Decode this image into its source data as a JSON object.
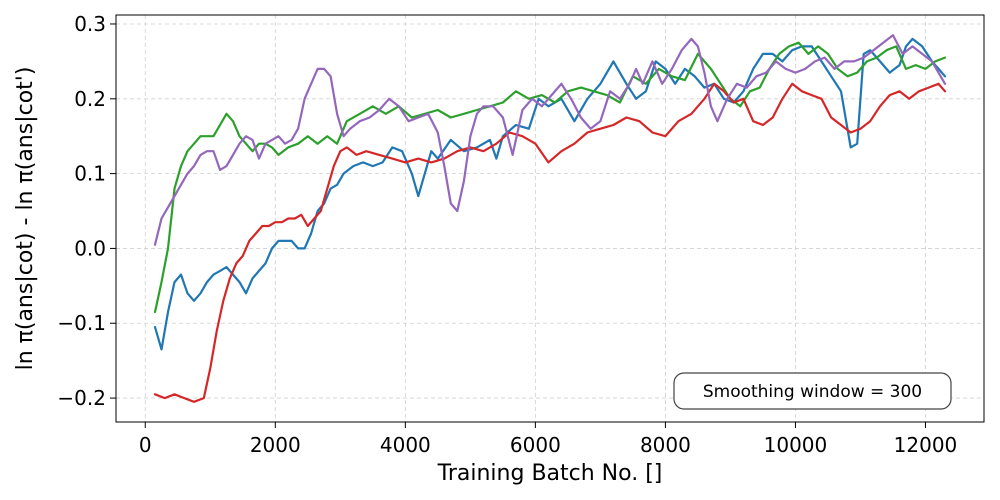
{
  "chart_data": {
    "type": "line",
    "title": "",
    "xlabel": "Training Batch No. []",
    "ylabel": "ln π(ans|cot) - ln π(ans|cot')",
    "xlim": [
      -450,
      12900
    ],
    "ylim": [
      -0.232,
      0.312
    ],
    "xticks": [
      0,
      2000,
      4000,
      6000,
      8000,
      10000,
      12000
    ],
    "xtick_labels": [
      "0",
      "2000",
      "4000",
      "6000",
      "8000",
      "10000",
      "12000"
    ],
    "yticks": [
      -0.2,
      -0.1,
      0.0,
      0.1,
      0.2,
      0.3
    ],
    "ytick_labels": [
      "−0.2",
      "−0.1",
      "0.0",
      "0.1",
      "0.2",
      "0.3"
    ],
    "grid": true,
    "annotation": "Smoothing window = 300",
    "annotation_position": "bottom-right",
    "series": [
      {
        "color": "#1f77b4",
        "x": [
          150,
          250,
          350,
          450,
          550,
          650,
          750,
          850,
          950,
          1050,
          1150,
          1250,
          1350,
          1450,
          1550,
          1650,
          1750,
          1850,
          1950,
          2050,
          2150,
          2250,
          2350,
          2450,
          2550,
          2650,
          2750,
          2850,
          2950,
          3050,
          3200,
          3350,
          3500,
          3650,
          3800,
          3950,
          4100,
          4200,
          4300,
          4400,
          4500,
          4700,
          4900,
          5100,
          5300,
          5400,
          5500,
          5700,
          5900,
          6050,
          6200,
          6400,
          6600,
          6800,
          7000,
          7200,
          7400,
          7550,
          7700,
          7850,
          8000,
          8150,
          8300,
          8450,
          8600,
          8750,
          8900,
          9050,
          9200,
          9350,
          9500,
          9650,
          9800,
          9950,
          10100,
          10250,
          10400,
          10550,
          10700,
          10850,
          10950,
          11050,
          11150,
          11300,
          11450,
          11600,
          11700,
          11800,
          11950,
          12100,
          12300
        ],
        "y": [
          -0.105,
          -0.135,
          -0.085,
          -0.045,
          -0.035,
          -0.06,
          -0.07,
          -0.06,
          -0.045,
          -0.035,
          -0.03,
          -0.025,
          -0.035,
          -0.045,
          -0.06,
          -0.04,
          -0.03,
          -0.02,
          0.0,
          0.01,
          0.01,
          0.01,
          0.0,
          0.0,
          0.02,
          0.05,
          0.06,
          0.08,
          0.085,
          0.1,
          0.11,
          0.115,
          0.11,
          0.115,
          0.135,
          0.13,
          0.1,
          0.07,
          0.1,
          0.13,
          0.12,
          0.145,
          0.13,
          0.135,
          0.145,
          0.12,
          0.15,
          0.165,
          0.16,
          0.2,
          0.19,
          0.2,
          0.17,
          0.2,
          0.22,
          0.25,
          0.22,
          0.2,
          0.21,
          0.25,
          0.24,
          0.22,
          0.24,
          0.23,
          0.215,
          0.22,
          0.2,
          0.195,
          0.21,
          0.24,
          0.26,
          0.26,
          0.25,
          0.265,
          0.27,
          0.27,
          0.25,
          0.23,
          0.21,
          0.135,
          0.14,
          0.26,
          0.265,
          0.25,
          0.235,
          0.245,
          0.27,
          0.28,
          0.27,
          0.25,
          0.23
        ]
      },
      {
        "color": "#2ca02c",
        "x": [
          150,
          250,
          350,
          450,
          550,
          650,
          750,
          850,
          950,
          1050,
          1150,
          1250,
          1350,
          1450,
          1550,
          1650,
          1750,
          1850,
          1950,
          2050,
          2200,
          2350,
          2500,
          2650,
          2800,
          2950,
          3100,
          3300,
          3500,
          3700,
          3900,
          4100,
          4300,
          4500,
          4700,
          4900,
          5100,
          5300,
          5500,
          5700,
          5900,
          6100,
          6300,
          6500,
          6700,
          6900,
          7100,
          7300,
          7500,
          7700,
          7900,
          8100,
          8300,
          8500,
          8700,
          8850,
          9000,
          9150,
          9300,
          9450,
          9600,
          9750,
          9900,
          10050,
          10200,
          10350,
          10500,
          10650,
          10800,
          10950,
          11100,
          11250,
          11400,
          11550,
          11700,
          11850,
          12000,
          12150,
          12300
        ],
        "y": [
          -0.085,
          -0.045,
          0.0,
          0.08,
          0.11,
          0.13,
          0.14,
          0.15,
          0.15,
          0.15,
          0.165,
          0.18,
          0.17,
          0.15,
          0.14,
          0.13,
          0.14,
          0.14,
          0.135,
          0.125,
          0.135,
          0.14,
          0.15,
          0.14,
          0.15,
          0.14,
          0.17,
          0.18,
          0.19,
          0.18,
          0.19,
          0.175,
          0.18,
          0.185,
          0.175,
          0.18,
          0.185,
          0.19,
          0.195,
          0.21,
          0.2,
          0.205,
          0.195,
          0.21,
          0.215,
          0.21,
          0.205,
          0.195,
          0.23,
          0.22,
          0.24,
          0.23,
          0.225,
          0.26,
          0.24,
          0.22,
          0.2,
          0.19,
          0.21,
          0.215,
          0.24,
          0.26,
          0.27,
          0.275,
          0.26,
          0.27,
          0.26,
          0.24,
          0.23,
          0.235,
          0.25,
          0.255,
          0.265,
          0.27,
          0.24,
          0.245,
          0.24,
          0.25,
          0.255
        ]
      },
      {
        "color": "#d62728",
        "x": [
          150,
          300,
          450,
          600,
          750,
          900,
          1000,
          1100,
          1200,
          1300,
          1400,
          1500,
          1600,
          1700,
          1800,
          1900,
          2000,
          2100,
          2200,
          2300,
          2400,
          2500,
          2600,
          2700,
          2800,
          2900,
          3000,
          3100,
          3250,
          3400,
          3600,
          3800,
          4000,
          4200,
          4400,
          4600,
          4800,
          5000,
          5200,
          5400,
          5600,
          5800,
          6000,
          6200,
          6400,
          6600,
          6800,
          7000,
          7200,
          7400,
          7600,
          7800,
          8000,
          8200,
          8400,
          8600,
          8750,
          8900,
          9050,
          9200,
          9350,
          9500,
          9650,
          9800,
          9950,
          10100,
          10250,
          10400,
          10550,
          10700,
          10850,
          11000,
          11150,
          11300,
          11450,
          11600,
          11750,
          11900,
          12050,
          12200,
          12300
        ],
        "y": [
          -0.195,
          -0.2,
          -0.195,
          -0.2,
          -0.205,
          -0.2,
          -0.16,
          -0.11,
          -0.07,
          -0.04,
          -0.02,
          -0.01,
          0.01,
          0.02,
          0.03,
          0.03,
          0.035,
          0.035,
          0.04,
          0.04,
          0.045,
          0.03,
          0.04,
          0.05,
          0.08,
          0.11,
          0.13,
          0.135,
          0.125,
          0.13,
          0.125,
          0.12,
          0.115,
          0.12,
          0.115,
          0.12,
          0.13,
          0.135,
          0.13,
          0.14,
          0.155,
          0.15,
          0.14,
          0.115,
          0.13,
          0.14,
          0.155,
          0.16,
          0.165,
          0.175,
          0.17,
          0.155,
          0.15,
          0.17,
          0.18,
          0.2,
          0.22,
          0.21,
          0.195,
          0.2,
          0.17,
          0.165,
          0.175,
          0.2,
          0.22,
          0.21,
          0.205,
          0.2,
          0.175,
          0.165,
          0.155,
          0.16,
          0.17,
          0.19,
          0.205,
          0.21,
          0.2,
          0.21,
          0.215,
          0.22,
          0.21
        ]
      },
      {
        "color": "#9467bd",
        "x": [
          150,
          250,
          350,
          450,
          550,
          650,
          750,
          850,
          950,
          1050,
          1150,
          1250,
          1350,
          1450,
          1550,
          1650,
          1750,
          1850,
          1950,
          2050,
          2150,
          2250,
          2350,
          2450,
          2550,
          2650,
          2750,
          2850,
          2950,
          3050,
          3150,
          3300,
          3450,
          3600,
          3750,
          3900,
          4050,
          4200,
          4350,
          4500,
          4600,
          4700,
          4800,
          4900,
          5000,
          5100,
          5200,
          5350,
          5500,
          5650,
          5800,
          5950,
          6100,
          6250,
          6400,
          6550,
          6700,
          6850,
          7000,
          7150,
          7300,
          7450,
          7550,
          7650,
          7800,
          7950,
          8100,
          8250,
          8400,
          8500,
          8600,
          8700,
          8800,
          8950,
          9100,
          9250,
          9400,
          9550,
          9700,
          9850,
          10000,
          10150,
          10300,
          10450,
          10600,
          10750,
          10900,
          11050,
          11200,
          11350,
          11500,
          11650,
          11800,
          11950,
          12100,
          12300
        ],
        "y": [
          0.005,
          0.04,
          0.055,
          0.07,
          0.085,
          0.1,
          0.11,
          0.125,
          0.13,
          0.13,
          0.105,
          0.11,
          0.125,
          0.14,
          0.15,
          0.145,
          0.12,
          0.14,
          0.145,
          0.15,
          0.14,
          0.145,
          0.16,
          0.2,
          0.22,
          0.24,
          0.24,
          0.23,
          0.18,
          0.15,
          0.16,
          0.17,
          0.175,
          0.185,
          0.2,
          0.19,
          0.17,
          0.175,
          0.18,
          0.155,
          0.11,
          0.06,
          0.05,
          0.09,
          0.15,
          0.18,
          0.19,
          0.19,
          0.175,
          0.125,
          0.185,
          0.2,
          0.19,
          0.205,
          0.22,
          0.2,
          0.175,
          0.16,
          0.17,
          0.21,
          0.2,
          0.22,
          0.24,
          0.22,
          0.25,
          0.22,
          0.24,
          0.265,
          0.28,
          0.27,
          0.235,
          0.19,
          0.17,
          0.2,
          0.22,
          0.215,
          0.23,
          0.235,
          0.25,
          0.24,
          0.235,
          0.24,
          0.25,
          0.255,
          0.24,
          0.25,
          0.25,
          0.255,
          0.265,
          0.275,
          0.285,
          0.26,
          0.27,
          0.26,
          0.25,
          0.22
        ]
      }
    ]
  },
  "colors": {
    "grid": "#d0d0d0",
    "axes": "#000000",
    "annotation_border": "#444444"
  }
}
